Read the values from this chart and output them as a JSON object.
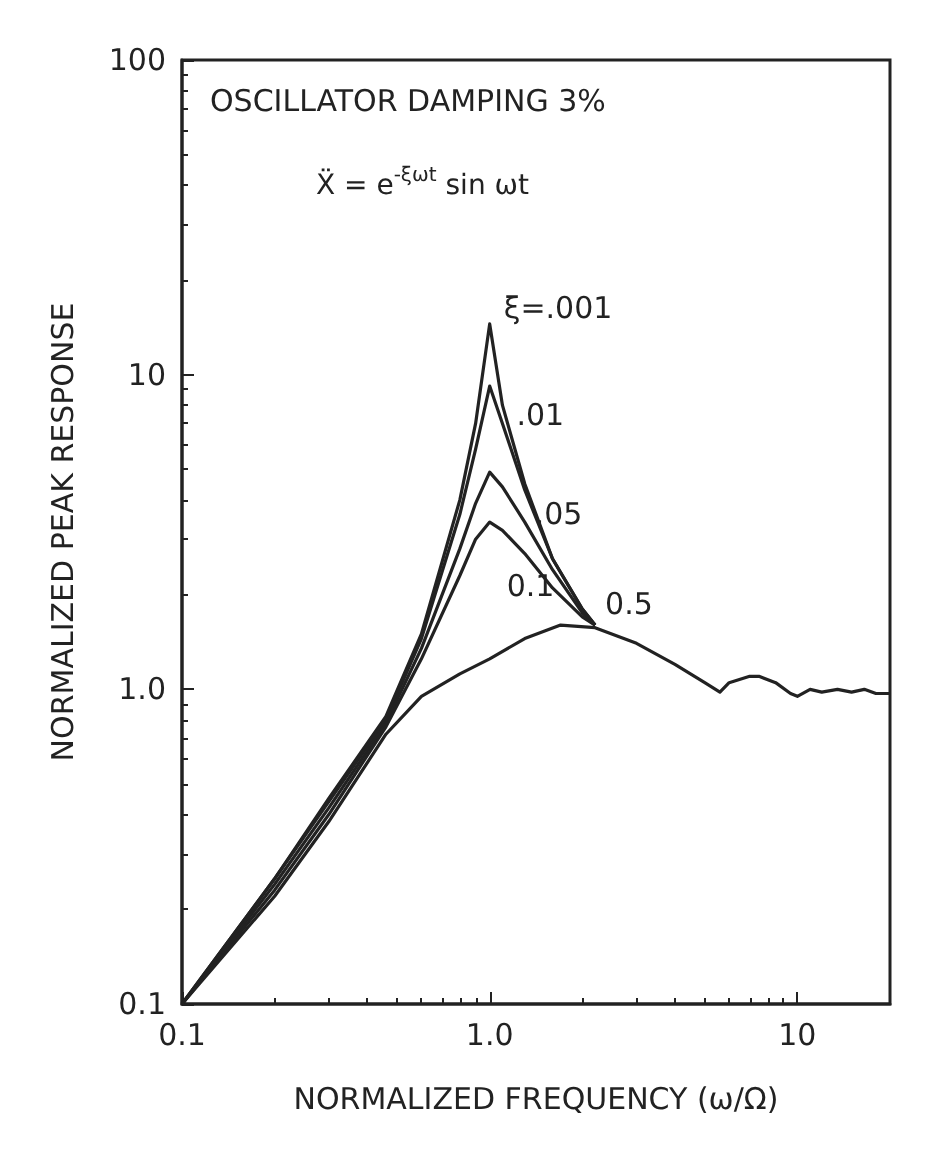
{
  "chart_data": {
    "type": "line",
    "title": "OSCILLATOR DAMPING 3%",
    "annotations": [
      "Ẍ = e$^{-ξωt}$ sin ωt"
    ],
    "xlabel": "NORMALIZED FREQUENCY (ω/Ω)",
    "ylabel": "NORMALIZED PEAK RESPONSE",
    "log": "xy",
    "xlim": [
      0.1,
      20
    ],
    "xticks": [
      0.1,
      {
        "value": 1,
        "label": "1.0"
      },
      10
    ],
    "ylim": [
      0.1,
      100
    ],
    "yticks": [
      0.1,
      {
        "value": 1,
        "label": "1.0"
      },
      10,
      100
    ],
    "grid": false,
    "legend": false,
    "marker": "none",
    "line_style": "solid",
    "series": [
      {
        "name": "ξ=.001",
        "color": "#222222",
        "x": [
          0.1,
          0.2,
          0.3,
          0.46,
          0.6,
          0.8,
          0.9,
          1.0,
          1.1,
          1.3,
          1.6,
          2.0,
          2.2
        ],
        "values": [
          0.1,
          0.25,
          0.45,
          0.82,
          1.5,
          4,
          7,
          14.5,
          8,
          4.5,
          2.6,
          1.8,
          1.6
        ]
      },
      {
        "name": ".01",
        "color": "#222222",
        "x": [
          0.1,
          0.2,
          0.3,
          0.46,
          0.6,
          0.8,
          0.9,
          1.0,
          1.1,
          1.3,
          1.6,
          2.0,
          2.2
        ],
        "values": [
          0.1,
          0.25,
          0.44,
          0.8,
          1.45,
          3.6,
          5.8,
          9.2,
          7,
          4.3,
          2.6,
          1.8,
          1.6
        ]
      },
      {
        "name": ".05",
        "color": "#222222",
        "x": [
          0.1,
          0.2,
          0.3,
          0.46,
          0.6,
          0.8,
          0.9,
          1.0,
          1.1,
          1.3,
          1.6,
          2.0,
          2.2
        ],
        "values": [
          0.1,
          0.24,
          0.42,
          0.78,
          1.35,
          2.8,
          3.9,
          4.9,
          4.4,
          3.4,
          2.4,
          1.75,
          1.6
        ]
      },
      {
        "name": "0.1",
        "color": "#222222",
        "x": [
          0.1,
          0.2,
          0.3,
          0.46,
          0.6,
          0.8,
          0.9,
          1.0,
          1.1,
          1.3,
          1.6,
          2.0,
          2.2
        ],
        "values": [
          0.1,
          0.23,
          0.4,
          0.76,
          1.25,
          2.3,
          3.0,
          3.4,
          3.2,
          2.7,
          2.1,
          1.7,
          1.6
        ]
      },
      {
        "name": "0.5",
        "color": "#222222",
        "x": [
          0.1,
          0.2,
          0.3,
          0.46,
          0.6,
          0.8,
          1.0,
          1.3,
          1.7,
          2.2,
          3,
          4,
          5,
          5.6,
          6,
          7,
          7.5,
          8.5,
          9.5,
          10,
          11,
          12,
          13.5,
          15,
          16.5,
          18,
          20
        ],
        "values": [
          0.1,
          0.22,
          0.38,
          0.72,
          0.95,
          1.12,
          1.25,
          1.45,
          1.6,
          1.57,
          1.4,
          1.2,
          1.05,
          0.98,
          1.05,
          1.1,
          1.1,
          1.05,
          0.97,
          0.95,
          1.0,
          0.98,
          1.0,
          0.98,
          1.0,
          0.97,
          0.97
        ]
      }
    ]
  }
}
